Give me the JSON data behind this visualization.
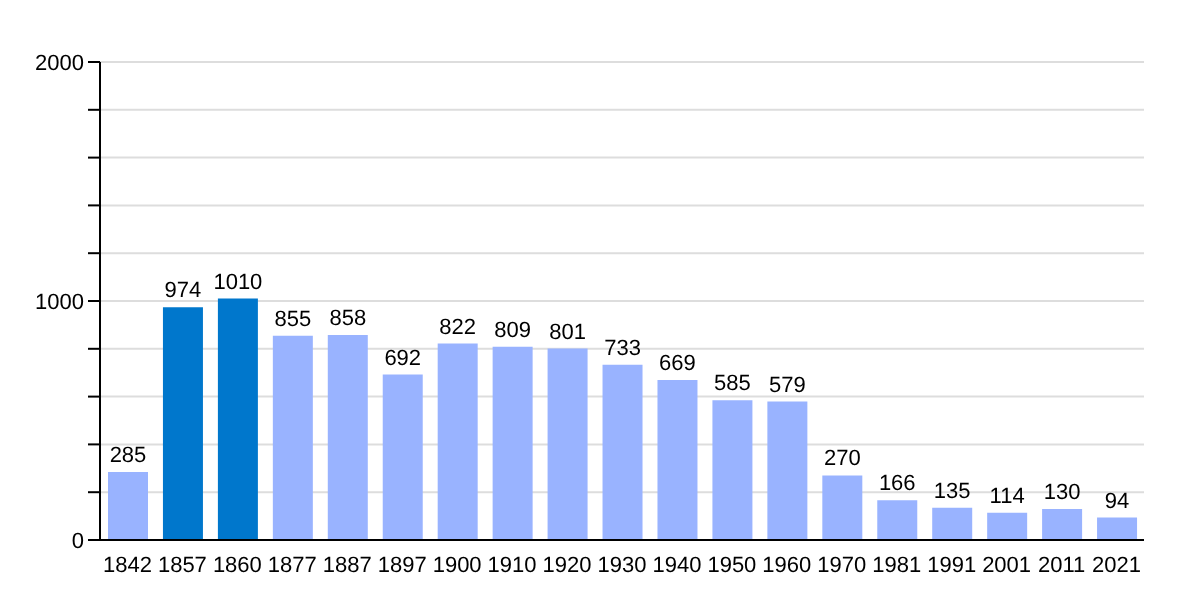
{
  "chart_data": {
    "type": "bar",
    "categories": [
      "1842",
      "1857",
      "1860",
      "1877",
      "1887",
      "1897",
      "1900",
      "1910",
      "1920",
      "1930",
      "1940",
      "1950",
      "1960",
      "1970",
      "1981",
      "1991",
      "2001",
      "2011",
      "2021"
    ],
    "values": [
      285,
      974,
      1010,
      855,
      858,
      692,
      822,
      809,
      801,
      733,
      669,
      585,
      579,
      270,
      166,
      135,
      114,
      130,
      94
    ],
    "colors": [
      "#99b3ff",
      "#0077cc",
      "#0077cc",
      "#99b3ff",
      "#99b3ff",
      "#99b3ff",
      "#99b3ff",
      "#99b3ff",
      "#99b3ff",
      "#99b3ff",
      "#99b3ff",
      "#99b3ff",
      "#99b3ff",
      "#99b3ff",
      "#99b3ff",
      "#99b3ff",
      "#99b3ff",
      "#99b3ff",
      "#99b3ff"
    ],
    "ylim": [
      0,
      2000
    ],
    "yticks": [
      0,
      {
        "value": 200,
        "label": null
      },
      {
        "value": 400,
        "label": null
      },
      {
        "value": 600,
        "label": null
      },
      {
        "value": 800,
        "label": null
      },
      1000,
      {
        "value": 1200,
        "label": null
      },
      {
        "value": 1400,
        "label": null
      },
      {
        "value": 1600,
        "label": null
      },
      {
        "value": 1800,
        "label": null
      },
      2000
    ],
    "grid": "y",
    "data_labels": true
  }
}
